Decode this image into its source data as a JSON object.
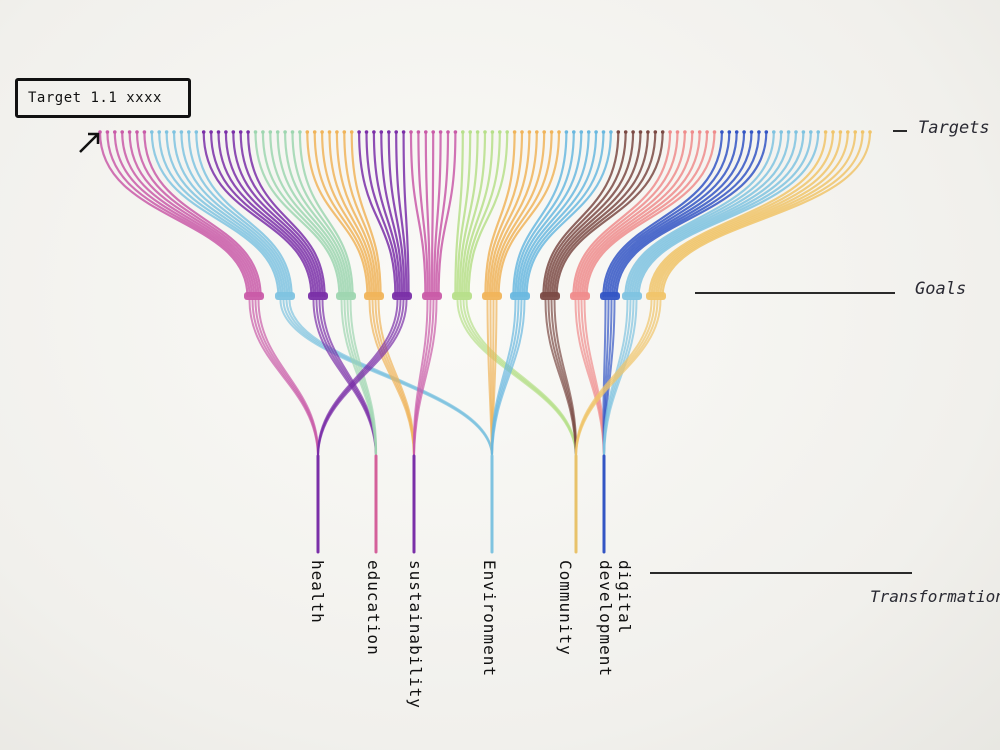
{
  "target_box": {
    "label": "Target 1.1 xxxx"
  },
  "levels": {
    "targets": "Targets",
    "goals": "Goals",
    "transformation": "Transformation"
  },
  "themes": [
    {
      "label": "health",
      "color": "#7a2fa8"
    },
    {
      "label": "education",
      "color": "#d4609a"
    },
    {
      "label": "sustainability",
      "color": "#7a2fa8"
    },
    {
      "label": "Environment",
      "color": "#7fc3e0"
    },
    {
      "label": "Community",
      "color": "#e8c26a"
    },
    {
      "label": "digital development",
      "color": "#3355c4"
    }
  ],
  "goal_colors": [
    "#c95ba8",
    "#7fc3e0",
    "#7a2fa8",
    "#9ed6b0",
    "#f0b45a",
    "#7a2fa8",
    "#c95ba8",
    "#b7df8a",
    "#f0b45a",
    "#6ab8df",
    "#7b4a44",
    "#ef8c8c",
    "#3355c4",
    "#7fc3e0",
    "#f0c46a"
  ]
}
